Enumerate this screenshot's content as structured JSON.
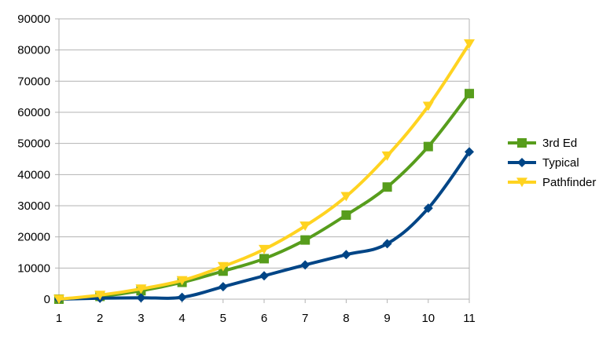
{
  "chart_data": {
    "type": "line",
    "smooth": true,
    "x": [
      1,
      2,
      3,
      4,
      5,
      6,
      7,
      8,
      9,
      10,
      11
    ],
    "x_tick_labels": [
      "1",
      "2",
      "3",
      "4",
      "5",
      "6",
      "7",
      "8",
      "9",
      "10",
      "11"
    ],
    "y_tick_labels": [
      "0",
      "10000",
      "20000",
      "30000",
      "40000",
      "50000",
      "60000",
      "70000",
      "80000",
      "90000"
    ],
    "ylim": [
      0,
      90000
    ],
    "y_ticks": [
      0,
      10000,
      20000,
      30000,
      40000,
      50000,
      60000,
      70000,
      80000,
      90000
    ],
    "grid": true,
    "legend_position": "right",
    "title": "",
    "xlabel": "",
    "ylabel": "",
    "series": [
      {
        "name": "3rd Ed",
        "color": "#579d1c",
        "marker": "square",
        "values": [
          0,
          900,
          2700,
          5400,
          9000,
          13000,
          19000,
          27000,
          36000,
          49000,
          66000
        ]
      },
      {
        "name": "Typical",
        "color": "#004586",
        "marker": "diamond",
        "values": [
          0,
          300,
          450,
          600,
          4000,
          7500,
          11000,
          14300,
          17800,
          29200,
          47300
        ]
      },
      {
        "name": "Pathfinder",
        "color": "#ffd320",
        "marker": "triangle-down",
        "values": [
          0,
          1300,
          3300,
          6000,
          10500,
          16000,
          23500,
          33000,
          46000,
          62000,
          82000
        ]
      }
    ]
  }
}
